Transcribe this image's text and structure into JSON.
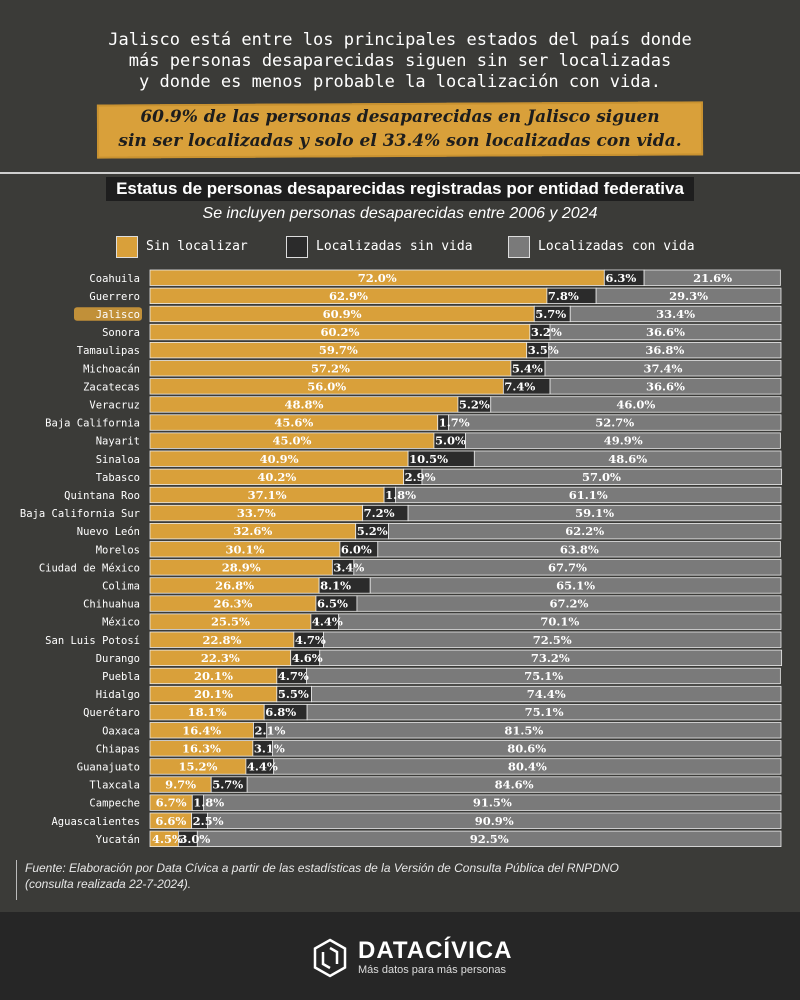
{
  "intro": {
    "line1": "Jalisco está entre los principales estados del país donde",
    "line2": "más personas desaparecidas siguen sin ser localizadas",
    "line3": "y donde es menos probable la localización con vida."
  },
  "highlight": {
    "line1": "60.9% de las personas desaparecidas en Jalisco siguen",
    "line2": "sin ser localizadas y solo el 33.4% son localizadas con vida."
  },
  "chart_data": {
    "type": "bar",
    "orientation": "horizontal",
    "stacked": true,
    "title": "Estatus de personas desaparecidas registradas por entidad federativa",
    "subtitle": "Se incluyen personas desaparecidas entre 2006 y 2024",
    "xlim": [
      0,
      100
    ],
    "legend_position": "top",
    "highlight_category": "Jalisco",
    "categories": [
      "Coahuila",
      "Guerrero",
      "Jalisco",
      "Sonora",
      "Tamaulipas",
      "Michoacán",
      "Zacatecas",
      "Veracruz",
      "Baja California",
      "Nayarit",
      "Sinaloa",
      "Tabasco",
      "Quintana Roo",
      "Baja California Sur",
      "Nuevo León",
      "Morelos",
      "Ciudad de México",
      "Colima",
      "Chihuahua",
      "México",
      "San Luis Potosí",
      "Durango",
      "Puebla",
      "Hidalgo",
      "Querétaro",
      "Oaxaca",
      "Chiapas",
      "Guanajuato",
      "Tlaxcala",
      "Campeche",
      "Aguascalientes",
      "Yucatán"
    ],
    "series": [
      {
        "name": "Sin localizar",
        "color": "#d9a03a",
        "values": [
          72.0,
          62.9,
          60.9,
          60.2,
          59.7,
          57.2,
          56.0,
          48.8,
          45.6,
          45.0,
          40.9,
          40.2,
          37.1,
          33.7,
          32.6,
          30.1,
          28.9,
          26.8,
          26.3,
          25.5,
          22.8,
          22.3,
          20.1,
          20.1,
          18.1,
          16.4,
          16.3,
          15.2,
          9.7,
          6.7,
          6.6,
          4.5
        ]
      },
      {
        "name": "Localizadas sin vida",
        "color": "#2b2b2b",
        "values": [
          6.3,
          7.8,
          5.7,
          3.2,
          3.5,
          5.4,
          7.4,
          5.2,
          1.7,
          5.0,
          10.5,
          2.9,
          1.8,
          7.2,
          5.2,
          6.0,
          3.4,
          8.1,
          6.5,
          4.4,
          4.7,
          4.6,
          4.7,
          5.5,
          6.8,
          2.1,
          3.1,
          4.4,
          5.7,
          1.8,
          2.5,
          3.0
        ]
      },
      {
        "name": "Localizadas con vida",
        "color": "#7a7a7a",
        "values": [
          21.6,
          29.3,
          33.4,
          36.6,
          36.8,
          37.4,
          36.6,
          46.0,
          52.7,
          49.9,
          48.6,
          57.0,
          61.1,
          59.1,
          62.2,
          63.8,
          67.7,
          65.1,
          67.2,
          70.1,
          72.5,
          73.2,
          75.1,
          74.4,
          75.1,
          81.5,
          80.6,
          80.4,
          84.6,
          91.5,
          90.9,
          92.5
        ]
      }
    ]
  },
  "source": {
    "line1": "Fuente: Elaboración por Data Cívica a partir de las estadísticas de la Versión de Consulta Pública del RNPDNO",
    "line2": "(consulta realizada 22-7-2024)."
  },
  "footer": {
    "brand": "DATACÍVICA",
    "tagline": "Más datos para más personas",
    "logo_icon": "datacivica-hexagon-icon"
  }
}
